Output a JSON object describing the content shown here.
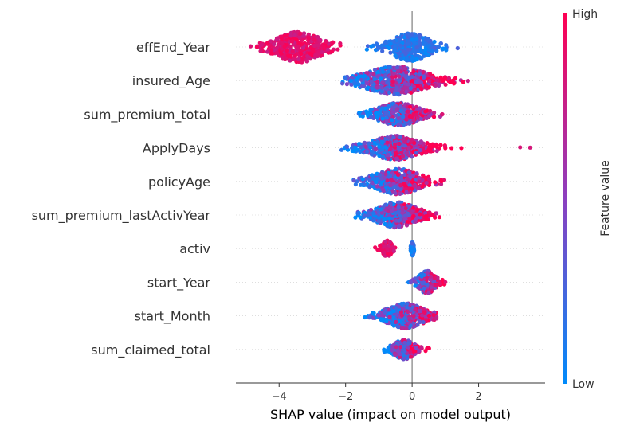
{
  "colors": {
    "low": "#008bfb",
    "mid": "#8c3fbf",
    "high": "#ff0052",
    "zero_line": "#999999",
    "row_guide": "#cccccc",
    "axis": "#333333"
  },
  "chart_data": {
    "type": "scatter",
    "subtype": "shap-beeswarm",
    "title": "",
    "xlabel": "SHAP value (impact on model output)",
    "ylabel": "",
    "xlim": [
      -5.3,
      4.0
    ],
    "xticks": [
      -4,
      -2,
      0,
      2
    ],
    "xtick_labels": [
      "−4",
      "−2",
      "0",
      "2"
    ],
    "grid": false,
    "colorbar": {
      "title": "Feature value",
      "high_label": "High",
      "low_label": "Low",
      "placement": "right"
    },
    "features": [
      {
        "name": "effEnd_Year",
        "clusters": [
          {
            "min": -4.95,
            "max": -2.15,
            "center": -3.4,
            "spread": 0.55,
            "n": 420,
            "height": 0.46,
            "value_mode": "high"
          },
          {
            "min": -1.55,
            "max": 1.45,
            "center": -0.05,
            "spread": 0.45,
            "n": 340,
            "height": 0.42,
            "value_mode": "low"
          }
        ]
      },
      {
        "name": "insured_Age",
        "clusters": [
          {
            "min": -2.1,
            "max": 1.9,
            "center": -0.5,
            "spread": 0.75,
            "n": 560,
            "height": 0.42,
            "value_mode": "mixed"
          }
        ]
      },
      {
        "name": "sum_premium_total",
        "clusters": [
          {
            "min": -1.95,
            "max": 1.55,
            "center": -0.4,
            "spread": 0.5,
            "n": 420,
            "height": 0.34,
            "value_mode": "mixed"
          }
        ]
      },
      {
        "name": "ApplyDays",
        "clusters": [
          {
            "min": -2.25,
            "max": 1.95,
            "center": -0.5,
            "spread": 0.6,
            "n": 500,
            "height": 0.36,
            "value_mode": "mixed"
          },
          {
            "min": 3.25,
            "max": 3.55,
            "center": 3.4,
            "spread": 0.15,
            "n": 2,
            "height": 0.05,
            "value_mode": "high"
          }
        ]
      },
      {
        "name": "policyAge",
        "clusters": [
          {
            "min": -2.0,
            "max": 1.5,
            "center": -0.45,
            "spread": 0.55,
            "n": 440,
            "height": 0.38,
            "value_mode": "mixed"
          }
        ]
      },
      {
        "name": "sum_premium_lastActivYear",
        "clusters": [
          {
            "min": -1.8,
            "max": 1.65,
            "center": -0.45,
            "spread": 0.5,
            "n": 460,
            "height": 0.38,
            "value_mode": "mixed"
          }
        ]
      },
      {
        "name": "activ",
        "clusters": [
          {
            "min": -1.15,
            "max": -0.5,
            "center": -0.75,
            "spread": 0.12,
            "n": 90,
            "height": 0.24,
            "value_mode": "high"
          },
          {
            "min": -0.05,
            "max": 0.08,
            "center": 0.01,
            "spread": 0.03,
            "n": 70,
            "height": 0.22,
            "value_mode": "low"
          }
        ]
      },
      {
        "name": "start_Year",
        "clusters": [
          {
            "min": -0.3,
            "max": 1.1,
            "center": 0.45,
            "spread": 0.2,
            "n": 210,
            "height": 0.34,
            "value_mode": "mixed"
          }
        ]
      },
      {
        "name": "start_Month",
        "clusters": [
          {
            "min": -2.45,
            "max": 0.75,
            "center": -0.2,
            "spread": 0.45,
            "n": 480,
            "height": 0.38,
            "value_mode": "mixed"
          }
        ]
      },
      {
        "name": "sum_claimed_total",
        "clusters": [
          {
            "min": -0.85,
            "max": 1.05,
            "center": -0.25,
            "spread": 0.25,
            "n": 240,
            "height": 0.3,
            "value_mode": "mixed"
          }
        ]
      }
    ]
  }
}
